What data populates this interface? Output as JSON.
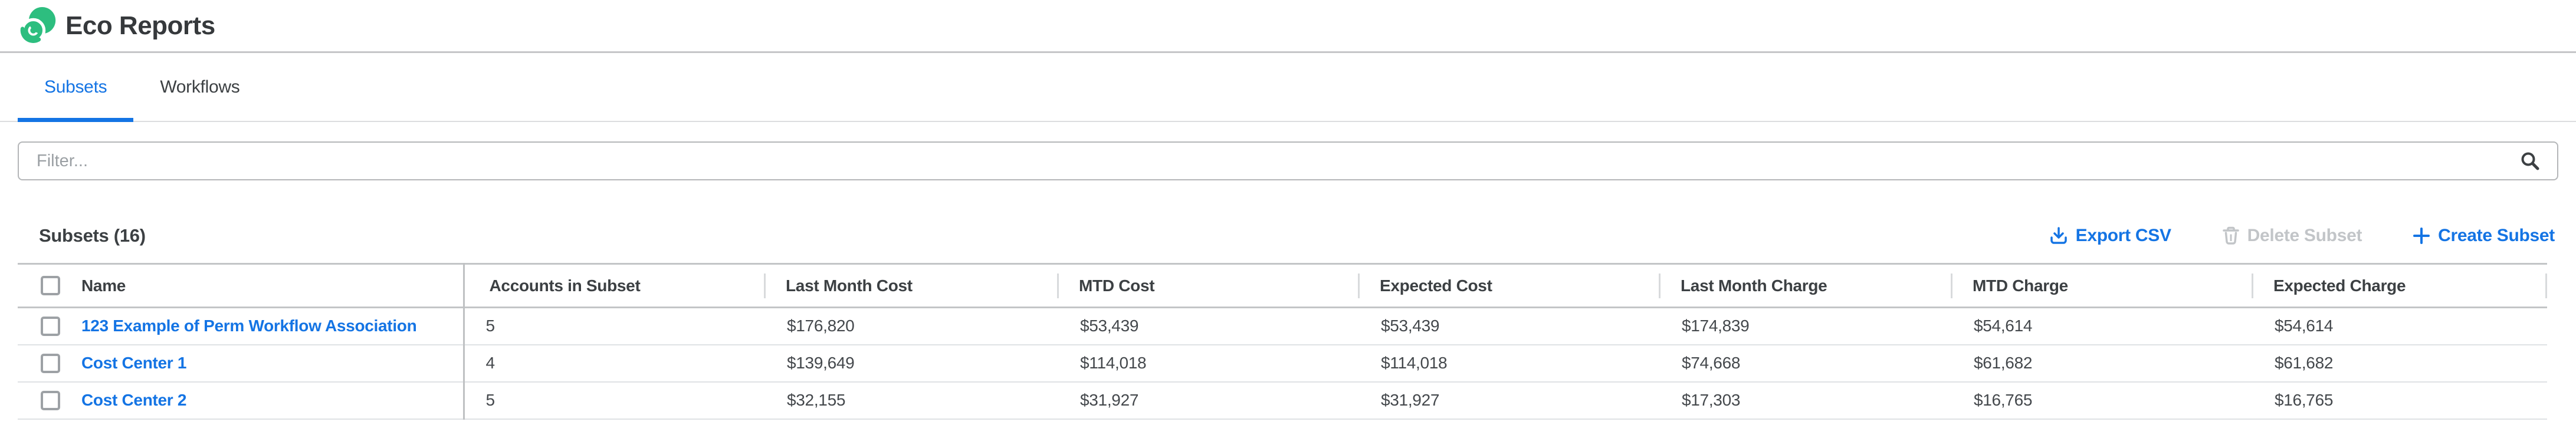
{
  "app": {
    "title": "Eco Reports"
  },
  "tabs": [
    {
      "label": "Subsets",
      "active": true
    },
    {
      "label": "Workflows",
      "active": false
    }
  ],
  "filter": {
    "placeholder": "Filter..."
  },
  "list_header": {
    "title": "Subsets (16)",
    "actions": [
      {
        "label": "Export CSV",
        "icon": "download-icon",
        "enabled": true
      },
      {
        "label": "Delete Subset",
        "icon": "trash-icon",
        "enabled": false
      },
      {
        "label": "Create Subset",
        "icon": "plus-icon",
        "enabled": true
      }
    ]
  },
  "table": {
    "columns": [
      "Name",
      "Accounts in Subset",
      "Last Month Cost",
      "MTD Cost",
      "Expected Cost",
      "Last Month Charge",
      "MTD Charge",
      "Expected Charge"
    ],
    "rows": [
      {
        "name": "123 Example of Perm Workflow Association",
        "accounts_in_subset": "5",
        "last_month_cost": "$176,820",
        "mtd_cost": "$53,439",
        "expected_cost": "$53,439",
        "last_month_charge": "$174,839",
        "mtd_charge": "$54,614",
        "expected_charge": "$54,614"
      },
      {
        "name": "Cost Center 1",
        "accounts_in_subset": "4",
        "last_month_cost": "$139,649",
        "mtd_cost": "$114,018",
        "expected_cost": "$114,018",
        "last_month_charge": "$74,668",
        "mtd_charge": "$61,682",
        "expected_charge": "$61,682"
      },
      {
        "name": "Cost Center 2",
        "accounts_in_subset": "5",
        "last_month_cost": "$32,155",
        "mtd_cost": "$31,927",
        "expected_cost": "$31,927",
        "last_month_charge": "$17,303",
        "mtd_charge": "$16,765",
        "expected_charge": "$16,765"
      }
    ]
  },
  "colors": {
    "accent_blue": "#1474e4",
    "logo_green": "#2dbe7f",
    "disabled_gray": "#c2c5c8"
  }
}
